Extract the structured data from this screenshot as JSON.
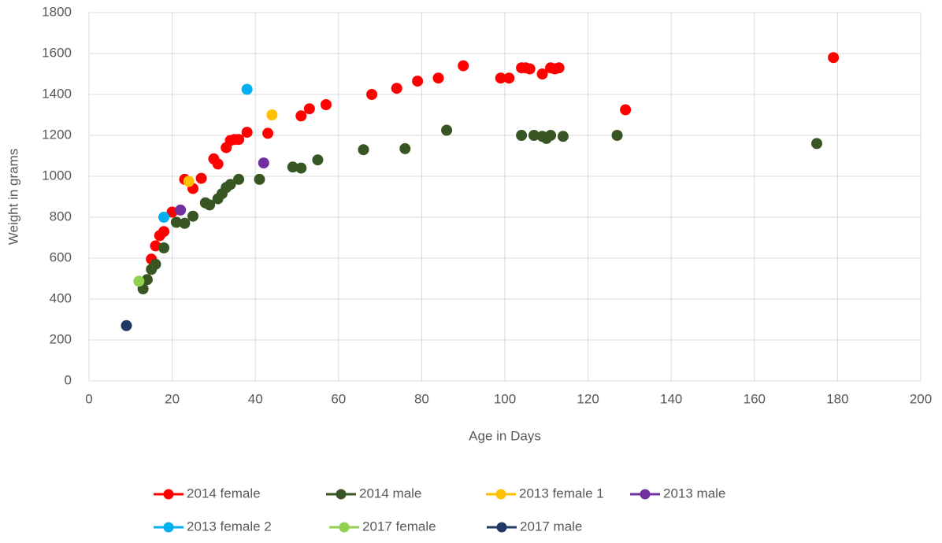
{
  "chart_data": {
    "type": "scatter",
    "x_label": "Age in Days",
    "y_label": "Weight in grams",
    "xlim": [
      0,
      200
    ],
    "xticks": [
      0,
      20,
      40,
      60,
      80,
      100,
      120,
      140,
      160,
      180,
      200
    ],
    "ylim": [
      0,
      1800
    ],
    "yticks": [
      0,
      200,
      400,
      600,
      800,
      1000,
      1200,
      1400,
      1600,
      1800
    ],
    "grid": true,
    "legend": "bottom",
    "series": [
      {
        "name": "2014 female",
        "color": "#ff0000",
        "x": [
          15,
          16,
          17,
          18,
          20,
          23,
          25,
          27,
          30,
          31,
          33,
          34,
          35,
          36,
          38,
          43,
          51,
          53,
          57,
          68,
          74,
          79,
          84,
          90,
          99,
          101,
          104,
          105,
          106,
          109,
          111,
          112,
          113,
          129,
          179
        ],
        "values": [
          595,
          660,
          710,
          730,
          825,
          985,
          940,
          990,
          1085,
          1060,
          1140,
          1175,
          1180,
          1180,
          1215,
          1210,
          1295,
          1330,
          1350,
          1400,
          1430,
          1465,
          1480,
          1540,
          1480,
          1480,
          1530,
          1530,
          1525,
          1500,
          1530,
          1525,
          1530,
          1325,
          1580
        ]
      },
      {
        "name": "2014 male",
        "color": "#375623",
        "x": [
          13,
          14,
          15,
          16,
          18,
          21,
          23,
          25,
          28,
          29,
          31,
          32,
          33,
          34,
          36,
          41,
          49,
          51,
          55,
          66,
          76,
          86,
          104,
          107,
          109,
          110,
          111,
          114,
          127,
          175
        ],
        "values": [
          450,
          495,
          545,
          570,
          650,
          775,
          770,
          805,
          870,
          860,
          890,
          915,
          945,
          960,
          985,
          985,
          1045,
          1040,
          1080,
          1130,
          1135,
          1225,
          1200,
          1200,
          1195,
          1185,
          1200,
          1195,
          1200,
          1160
        ]
      },
      {
        "name": "2013 female 1",
        "color": "#ffc000",
        "x": [
          24,
          44
        ],
        "values": [
          975,
          1300
        ]
      },
      {
        "name": "2013 male",
        "color": "#7030a0",
        "x": [
          22,
          42
        ],
        "values": [
          835,
          1065
        ]
      },
      {
        "name": "2013 female 2",
        "color": "#00b0f0",
        "x": [
          18,
          38
        ],
        "values": [
          800,
          1425
        ]
      },
      {
        "name": "2017 female",
        "color": "#92d050",
        "x": [
          12
        ],
        "values": [
          487
        ]
      },
      {
        "name": "2017 male",
        "color": "#1f3864",
        "x": [
          9
        ],
        "values": [
          270
        ]
      }
    ]
  }
}
